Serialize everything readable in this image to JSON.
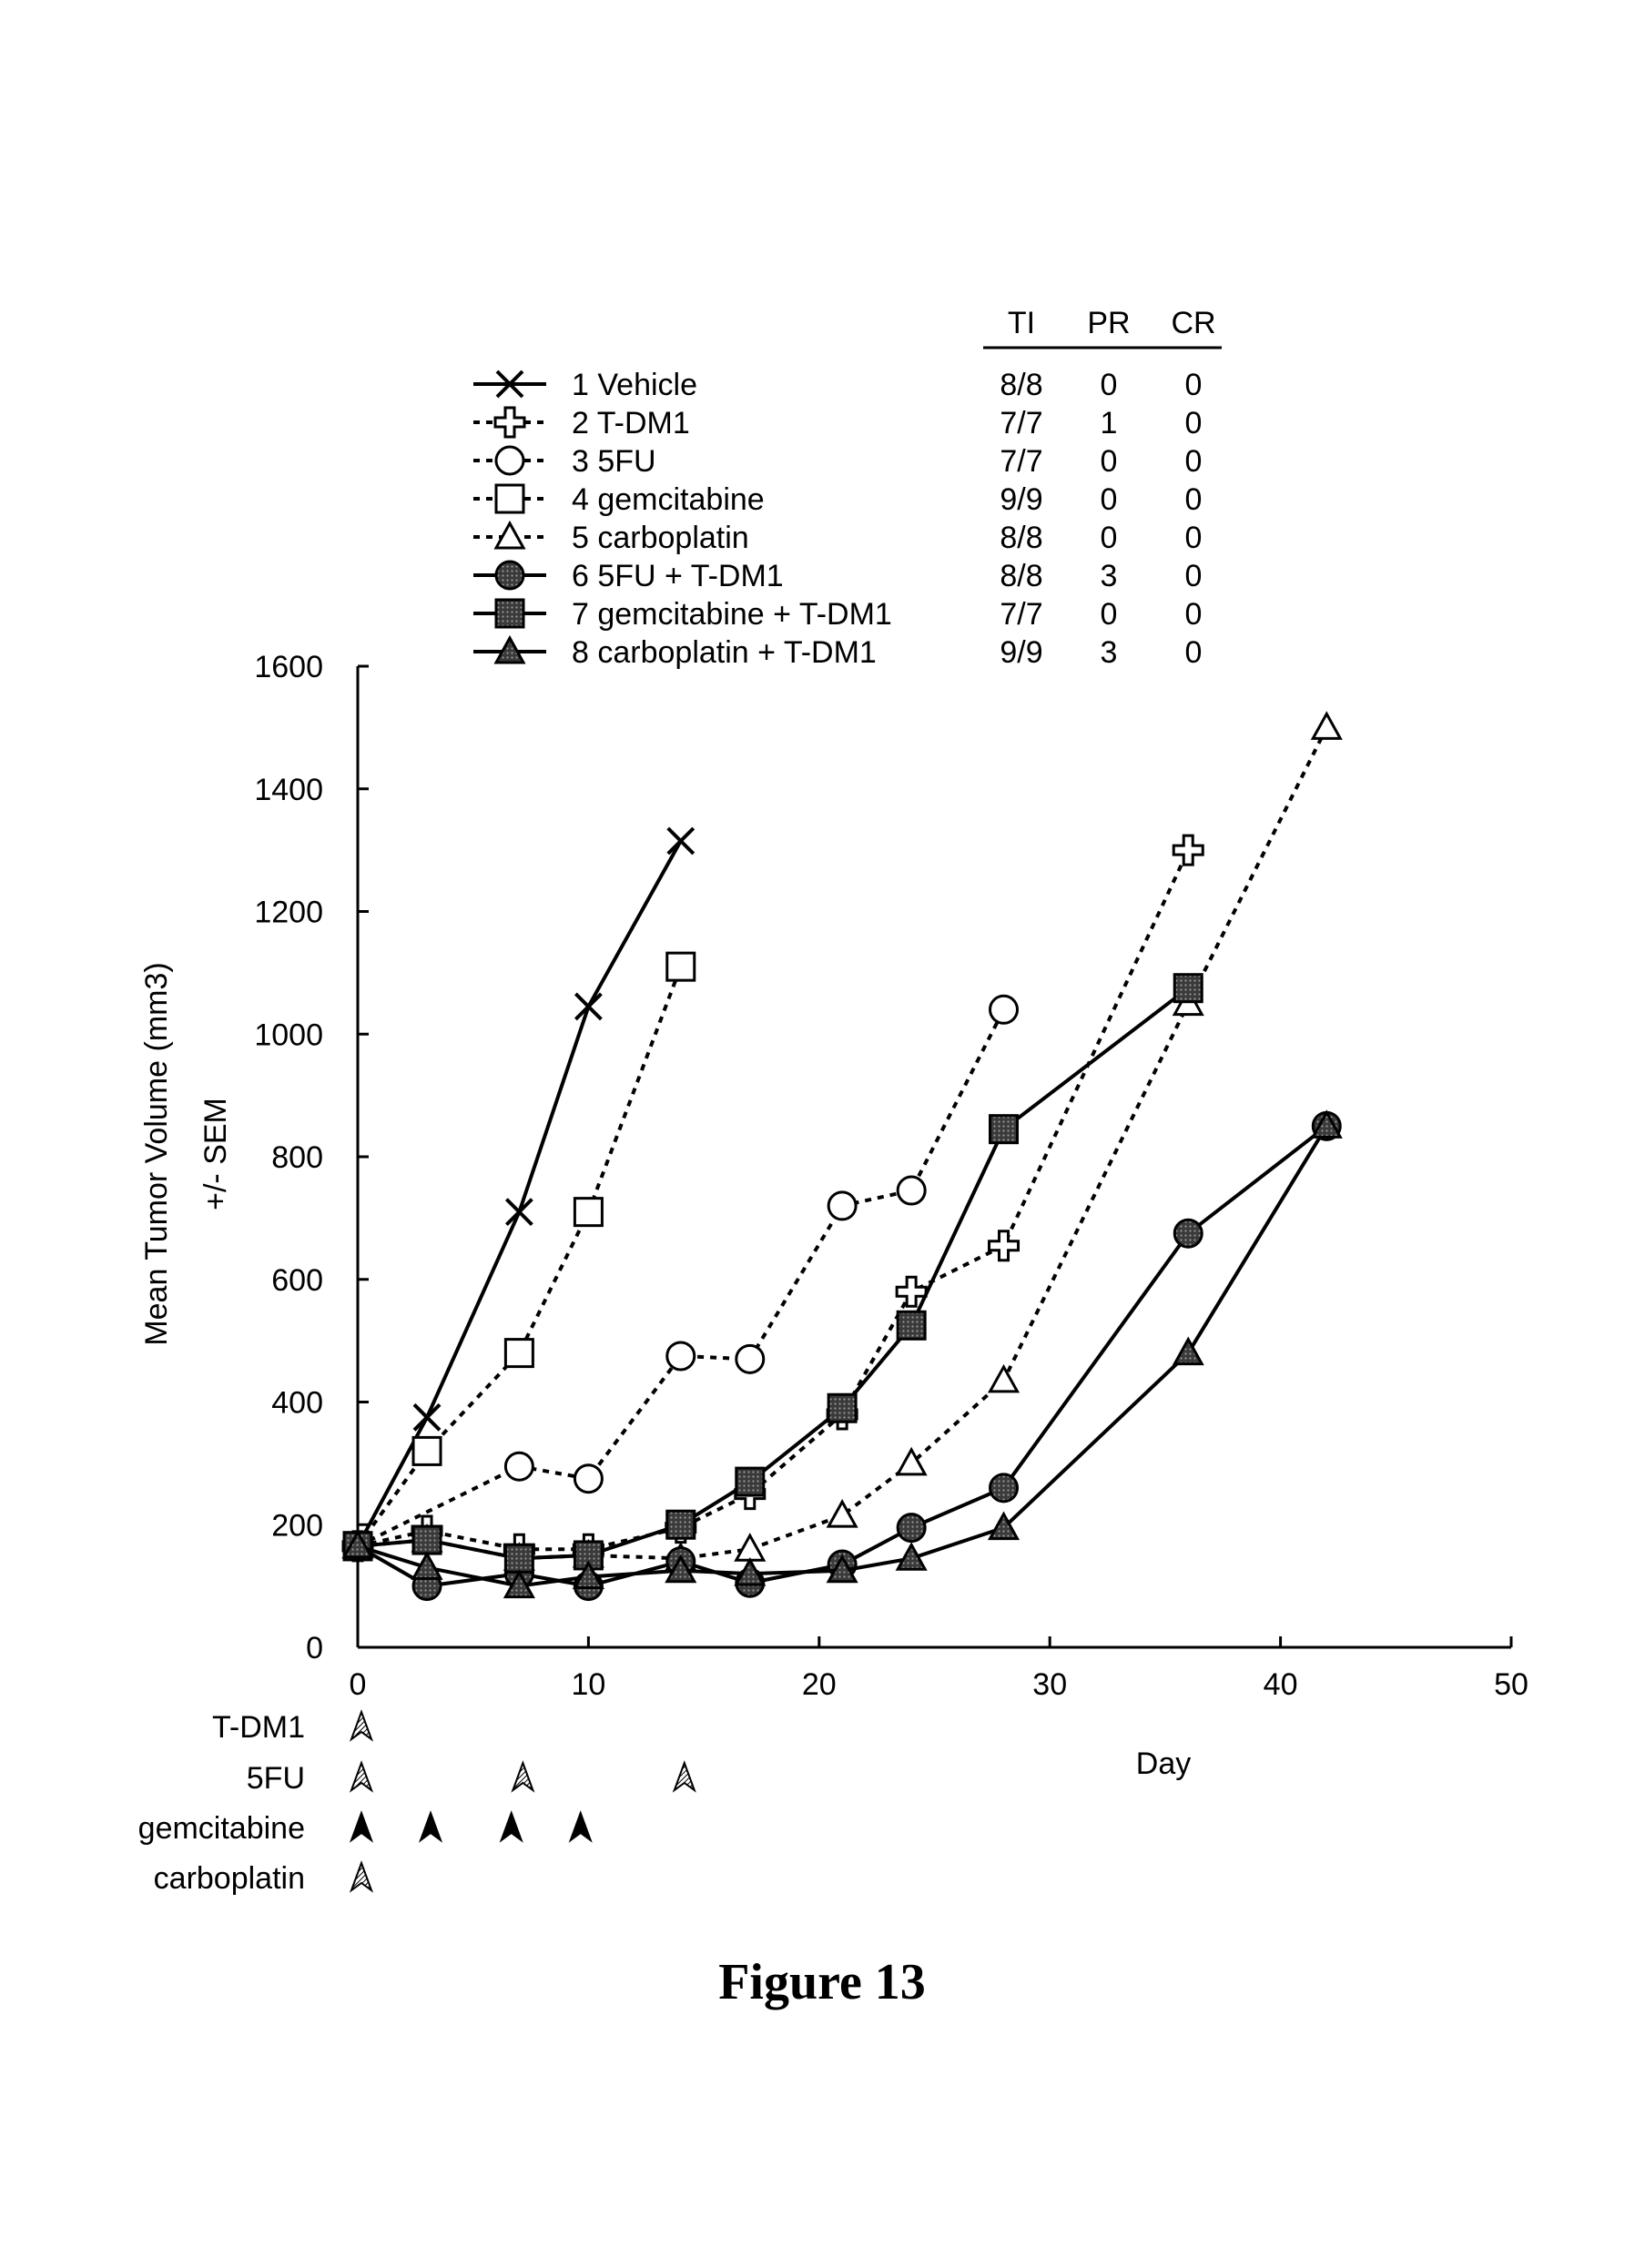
{
  "figure_caption": "Figure 13",
  "table_headers": [
    "TI",
    "PR",
    "CR"
  ],
  "chart_data": {
    "type": "line",
    "title": "",
    "xlabel": "Day",
    "ylabel_lines": [
      "Mean Tumor Volume (mm3)",
      "+/- SEM"
    ],
    "xlim": [
      0,
      50
    ],
    "ylim": [
      0,
      1600
    ],
    "xticks": [
      0,
      10,
      20,
      30,
      40,
      50
    ],
    "yticks": [
      0,
      200,
      400,
      600,
      800,
      1000,
      1200,
      1400,
      1600
    ],
    "grid": false,
    "legend_position": "top",
    "series": [
      {
        "name": "1 Vehicle",
        "marker": "x",
        "line": "solid",
        "fill": "none",
        "TI": "8/8",
        "PR": "0",
        "CR": "0",
        "x": [
          0,
          3,
          7,
          10,
          14
        ],
        "y": [
          165,
          375,
          710,
          1045,
          1315
        ]
      },
      {
        "name": "2 T-DM1",
        "marker": "cross",
        "line": "dotted",
        "fill": "white",
        "TI": "7/7",
        "PR": "1",
        "CR": "0",
        "x": [
          0,
          3,
          7,
          10,
          14,
          17,
          21,
          24,
          28,
          36
        ],
        "y": [
          165,
          190,
          160,
          160,
          195,
          250,
          380,
          580,
          655,
          1300
        ]
      },
      {
        "name": "3 5FU",
        "marker": "circle",
        "line": "dotted",
        "fill": "white",
        "TI": "7/7",
        "PR": "0",
        "CR": "0",
        "x": [
          0,
          7,
          10,
          14,
          17,
          21,
          24,
          28
        ],
        "y": [
          165,
          295,
          275,
          475,
          470,
          720,
          745,
          1040
        ]
      },
      {
        "name": "4 gemcitabine",
        "marker": "square",
        "line": "dotted",
        "fill": "white",
        "TI": "9/9",
        "PR": "0",
        "CR": "0",
        "x": [
          0,
          3,
          7,
          10,
          14
        ],
        "y": [
          165,
          320,
          480,
          710,
          1110
        ]
      },
      {
        "name": "5 carboplatin",
        "marker": "triangle",
        "line": "dotted",
        "fill": "white",
        "TI": "8/8",
        "PR": "0",
        "CR": "0",
        "x": [
          0,
          3,
          7,
          10,
          14,
          17,
          21,
          24,
          28,
          36,
          42
        ],
        "y": [
          165,
          175,
          145,
          150,
          145,
          160,
          215,
          300,
          435,
          1050,
          1500
        ]
      },
      {
        "name": "6 5FU + T-DM1",
        "marker": "circle",
        "line": "solid",
        "fill": "dark",
        "TI": "8/8",
        "PR": "3",
        "CR": "0",
        "x": [
          0,
          3,
          7,
          10,
          14,
          17,
          21,
          24,
          28,
          36,
          42
        ],
        "y": [
          165,
          100,
          120,
          100,
          140,
          105,
          135,
          195,
          260,
          675,
          850
        ]
      },
      {
        "name": "7 gemcitabine + T-DM1",
        "marker": "square",
        "line": "solid",
        "fill": "dark",
        "TI": "7/7",
        "PR": "0",
        "CR": "0",
        "x": [
          0,
          3,
          7,
          10,
          14,
          17,
          21,
          24,
          28,
          36
        ],
        "y": [
          165,
          175,
          145,
          150,
          200,
          270,
          390,
          525,
          845,
          1075
        ]
      },
      {
        "name": "8 carboplatin + T-DM1",
        "marker": "triangle",
        "line": "solid",
        "fill": "dark",
        "TI": "9/9",
        "PR": "3",
        "CR": "0",
        "x": [
          0,
          3,
          7,
          10,
          14,
          17,
          21,
          24,
          28,
          36,
          42
        ],
        "y": [
          165,
          130,
          100,
          115,
          125,
          120,
          125,
          145,
          195,
          480,
          850
        ]
      }
    ],
    "dosing": [
      {
        "label": "T-DM1",
        "days": [
          0
        ],
        "style": "hatched"
      },
      {
        "label": "5FU",
        "days": [
          0,
          7,
          14
        ],
        "style": "hatched"
      },
      {
        "label": "gemcitabine",
        "days": [
          0,
          3,
          6.5,
          9.5
        ],
        "style": "solid"
      },
      {
        "label": "carboplatin",
        "days": [
          0
        ],
        "style": "hatched"
      }
    ]
  }
}
